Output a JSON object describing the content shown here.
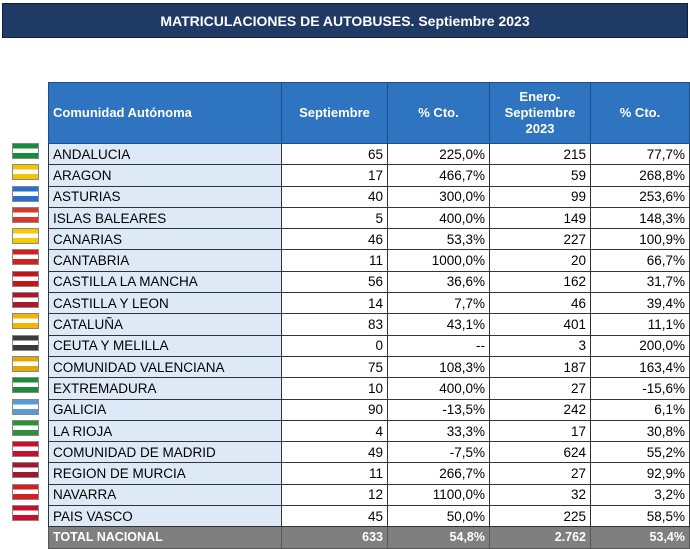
{
  "title": "MATRICULACIONES DE AUTOBUSES. Septiembre 2023",
  "headers": {
    "region": "Comunidad Autónoma",
    "sept": "Septiembre",
    "pct1": "% Cto.",
    "ytd_line1": "Enero-",
    "ytd_line2": "Septiembre",
    "ytd_line3": "2023",
    "pct2": "% Cto."
  },
  "rows": [
    {
      "name": "ANDALUCIA",
      "sept": "65",
      "pct1": "225,0%",
      "ytd": "215",
      "pct2": "77,7%",
      "flag": "#1a8a3c"
    },
    {
      "name": "ARAGON",
      "sept": "17",
      "pct1": "466,7%",
      "ytd": "59",
      "pct2": "268,8%",
      "flag": "#f2c500"
    },
    {
      "name": "ASTURIAS",
      "sept": "40",
      "pct1": "300,0%",
      "ytd": "99",
      "pct2": "253,6%",
      "flag": "#2a6fd0"
    },
    {
      "name": "ISLAS BALEARES",
      "sept": "5",
      "pct1": "400,0%",
      "ytd": "149",
      "pct2": "148,3%",
      "flag": "#d63a2a"
    },
    {
      "name": "CANARIAS",
      "sept": "46",
      "pct1": "53,3%",
      "ytd": "227",
      "pct2": "100,9%",
      "flag": "#f4c900"
    },
    {
      "name": "CANTABRIA",
      "sept": "11",
      "pct1": "1000,0%",
      "ytd": "20",
      "pct2": "66,7%",
      "flag": "#d02020"
    },
    {
      "name": "CASTILLA  LA MANCHA",
      "sept": "56",
      "pct1": "36,6%",
      "ytd": "162",
      "pct2": "31,7%",
      "flag": "#c01818"
    },
    {
      "name": "CASTILLA Y LEON",
      "sept": "14",
      "pct1": "7,7%",
      "ytd": "46",
      "pct2": "39,4%",
      "flag": "#b0162a"
    },
    {
      "name": "CATALUÑA",
      "sept": "83",
      "pct1": "43,1%",
      "ytd": "401",
      "pct2": "11,1%",
      "flag": "#f2b600"
    },
    {
      "name": "CEUTA Y MELILLA",
      "sept": "0",
      "pct1": "--",
      "ytd": "3",
      "pct2": "200,0%",
      "flag": "#3a3a3a"
    },
    {
      "name": "COMUNIDAD VALENCIANA",
      "sept": "75",
      "pct1": "108,3%",
      "ytd": "187",
      "pct2": "163,4%",
      "flag": "#e8a600"
    },
    {
      "name": "EXTREMADURA",
      "sept": "10",
      "pct1": "400,0%",
      "ytd": "27",
      "pct2": "-15,6%",
      "flag": "#1f8a3a"
    },
    {
      "name": "GALICIA",
      "sept": "90",
      "pct1": "-13,5%",
      "ytd": "242",
      "pct2": "6,1%",
      "flag": "#5a9ad8"
    },
    {
      "name": "LA RIOJA",
      "sept": "4",
      "pct1": "33,3%",
      "ytd": "17",
      "pct2": "30,8%",
      "flag": "#2f8f3c"
    },
    {
      "name": "COMUNIDAD DE MADRID",
      "sept": "49",
      "pct1": "-7,5%",
      "ytd": "624",
      "pct2": "55,2%",
      "flag": "#c8102e"
    },
    {
      "name": "REGION DE MURCIA",
      "sept": "11",
      "pct1": "266,7%",
      "ytd": "27",
      "pct2": "92,9%",
      "flag": "#a3162b"
    },
    {
      "name": "NAVARRA",
      "sept": "12",
      "pct1": "1100,0%",
      "ytd": "32",
      "pct2": "3,2%",
      "flag": "#d42020"
    },
    {
      "name": "PAIS VASCO",
      "sept": "45",
      "pct1": "50,0%",
      "ytd": "225",
      "pct2": "58,5%",
      "flag": "#c8102e"
    }
  ],
  "total": {
    "name": "TOTAL NACIONAL",
    "sept": "633",
    "pct1": "54,8%",
    "ytd": "2.762",
    "pct2": "53,4%"
  }
}
